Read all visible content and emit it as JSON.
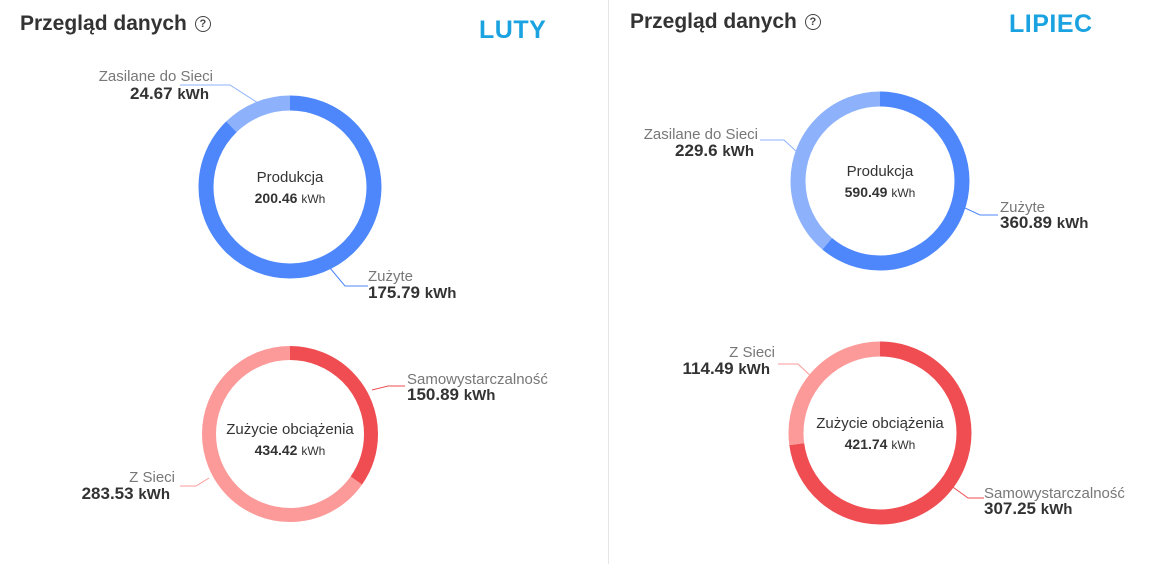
{
  "panels": [
    {
      "title": "Przegląd danych",
      "month": "LUTY"
    },
    {
      "title": "Przegląd danych",
      "month": "LIPIEC"
    }
  ],
  "colors": {
    "production_main": "#4d87fb",
    "production_light": "#8db2fb",
    "consumption_main": "#ef4d51",
    "consumption_light": "#fb9a99"
  },
  "chart_data": [
    {
      "type": "pie",
      "title": "Produkcja",
      "total": "200.46",
      "unit": "kWh",
      "slices": [
        {
          "label": "Zużyte",
          "value": "175.79",
          "unit": "kWh",
          "color": "#4d87fb"
        },
        {
          "label": "Zasilane do  Sieci",
          "value": "24.67",
          "unit": "kWh",
          "color": "#8db2fb"
        }
      ]
    },
    {
      "type": "pie",
      "title": "Zużycie obciążenia",
      "total": "434.42",
      "unit": "kWh",
      "slices": [
        {
          "label": "Samowystarczalność",
          "value": "150.89",
          "unit": "kWh",
          "color": "#ef4d51"
        },
        {
          "label": "Z Sieci",
          "value": "283.53",
          "unit": "kWh",
          "color": "#fb9a99"
        }
      ]
    },
    {
      "type": "pie",
      "title": "Produkcja",
      "total": "590.49",
      "unit": "kWh",
      "slices": [
        {
          "label": "Zużyte",
          "value": "360.89",
          "unit": "kWh",
          "color": "#4d87fb"
        },
        {
          "label": "Zasilane do  Sieci",
          "value": "229.6",
          "unit": "kWh",
          "color": "#8db2fb"
        }
      ]
    },
    {
      "type": "pie",
      "title": "Zużycie obciążenia",
      "total": "421.74",
      "unit": "kWh",
      "slices": [
        {
          "label": "Samowystarczalność",
          "value": "307.25",
          "unit": "kWh",
          "color": "#ef4d51"
        },
        {
          "label": "Z Sieci",
          "value": "114.49",
          "unit": "kWh",
          "color": "#fb9a99"
        }
      ]
    }
  ]
}
